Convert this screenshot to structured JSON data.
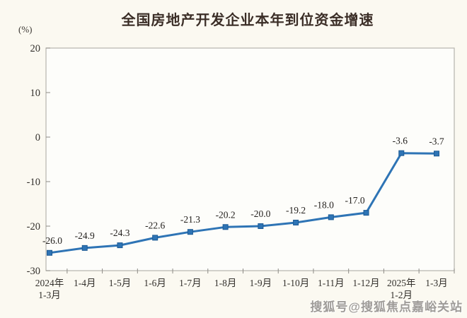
{
  "page": {
    "watermark": "搜狐号@搜狐焦点嘉峪关站"
  },
  "chart_data": {
    "type": "line",
    "title": "全国房地产开发企业本年到位资金增速",
    "unit_label": "(%)",
    "categories": [
      "2024年\n1-3月",
      "1-4月",
      "1-5月",
      "1-6月",
      "1-7月",
      "1-8月",
      "1-9月",
      "1-10月",
      "1-11月",
      "1-12月",
      "2025年\n1-2月",
      "1-3月"
    ],
    "values": [
      -26.0,
      -24.9,
      -24.3,
      -22.6,
      -21.3,
      -20.2,
      -20.0,
      -19.2,
      -18.0,
      -17.0,
      -3.6,
      -3.7
    ],
    "labels": [
      "-26.0",
      "-24.9",
      "-24.3",
      "-22.6",
      "-21.3",
      "-20.2",
      "-20.0",
      "-19.2",
      "-18.0",
      "-17.0",
      "-3.6",
      "-3.7"
    ],
    "yticks": [
      20,
      10,
      0,
      -10,
      -20,
      -30
    ],
    "ylim": [
      -30,
      20
    ],
    "xlabel": "",
    "ylabel": "(%)",
    "grid": false,
    "legend": false,
    "line_color": "#2E74B5",
    "marker": "square",
    "marker_edge_color": "#1c5a94",
    "axis_color": "#b6b4ad",
    "tick_color": "#8d8b85",
    "plot_bg": "#fdfdfa",
    "label_color": "#24211e",
    "axis_label_color": "#33302c"
  }
}
